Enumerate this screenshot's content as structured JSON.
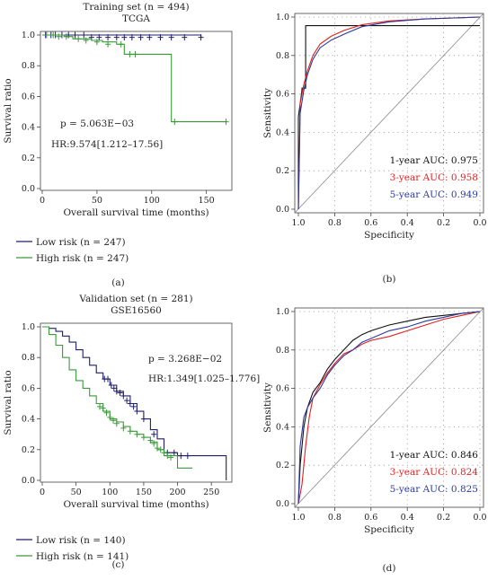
{
  "chart_data": [
    {
      "panel": "(a)",
      "type": "line",
      "title": "Training set (n = 494)",
      "subtitle": "TCGA",
      "xlabel": "Overall survival time (months)",
      "ylabel": "Survival ratio",
      "xlim": [
        0,
        170
      ],
      "ylim": [
        0,
        1.0
      ],
      "xticks": [
        "0",
        "50",
        "100",
        "150"
      ],
      "yticks": [
        "0.0",
        "0.2",
        "0.4",
        "0.6",
        "0.8",
        "1.0"
      ],
      "pvalue": "p = 5.063E−03",
      "hr": "HR:9.574[1.212–17.56]",
      "series": [
        {
          "name": "Low risk (n = 247)",
          "color": "#1f1f6b",
          "x": [
            0,
            145
          ],
          "y": [
            1.0,
            0.985
          ],
          "censor_x": [
            3,
            8,
            12,
            18,
            24,
            30,
            38,
            45,
            52,
            60,
            68,
            75,
            82,
            90,
            98,
            108,
            118,
            130,
            145
          ],
          "censor_y": [
            1.0,
            1.0,
            1.0,
            1.0,
            1.0,
            1.0,
            1.0,
            0.985,
            0.985,
            0.985,
            0.985,
            0.985,
            0.985,
            0.985,
            0.985,
            0.985,
            0.985,
            0.985,
            0.985
          ]
        },
        {
          "name": "High risk (n = 247)",
          "color": "#3a9a3a",
          "x": [
            0,
            20,
            28,
            45,
            55,
            68,
            75,
            90,
            115,
            118,
            168
          ],
          "y": [
            1.0,
            0.99,
            0.975,
            0.965,
            0.955,
            0.94,
            0.875,
            0.875,
            0.875,
            0.435,
            0.435
          ],
          "censor_x": [
            4,
            10,
            15,
            22,
            33,
            40,
            50,
            60,
            72,
            80,
            85,
            121,
            168
          ],
          "censor_y": [
            1.0,
            1.0,
            0.99,
            0.99,
            0.975,
            0.965,
            0.955,
            0.94,
            0.94,
            0.875,
            0.875,
            0.435,
            0.435
          ]
        }
      ]
    },
    {
      "panel": "(b)",
      "type": "line",
      "xlabel": "Specificity",
      "ylabel": "Sensitivity",
      "xlim": [
        1.0,
        0.0
      ],
      "ylim": [
        0,
        1.0
      ],
      "xticks": [
        "1.0",
        "0.8",
        "0.6",
        "0.4",
        "0.2",
        "0.0"
      ],
      "yticks": [
        "0.0",
        "0.2",
        "0.4",
        "0.6",
        "0.8",
        "1.0"
      ],
      "grid": true,
      "series": [
        {
          "name": "1-year AUC: 0.975",
          "color": "#111111",
          "x": [
            1.0,
            1.0,
            0.98,
            0.98,
            0.96,
            0.96,
            0.0
          ],
          "y": [
            0.0,
            0.48,
            0.62,
            0.63,
            0.63,
            0.955,
            0.955
          ]
        },
        {
          "name": "3-year AUC: 0.958",
          "color": "#e02020",
          "x": [
            1.0,
            0.99,
            0.97,
            0.95,
            0.92,
            0.88,
            0.82,
            0.75,
            0.65,
            0.5,
            0.3,
            0.0
          ],
          "y": [
            0.0,
            0.55,
            0.65,
            0.72,
            0.8,
            0.86,
            0.9,
            0.93,
            0.96,
            0.98,
            0.99,
            1.0
          ]
        },
        {
          "name": "5-year AUC: 0.949",
          "color": "#2b3b9a",
          "x": [
            1.0,
            0.99,
            0.97,
            0.95,
            0.92,
            0.88,
            0.82,
            0.75,
            0.65,
            0.5,
            0.3,
            0.0
          ],
          "y": [
            0.0,
            0.5,
            0.62,
            0.7,
            0.78,
            0.84,
            0.88,
            0.91,
            0.95,
            0.975,
            0.99,
            1.0
          ]
        }
      ]
    },
    {
      "panel": "(c)",
      "type": "line",
      "title": "Validation set (n = 281)",
      "subtitle": "GSE16560",
      "xlabel": "Overall survival time (months)",
      "ylabel": "Survival ratio",
      "xlim": [
        0,
        275
      ],
      "ylim": [
        0,
        1.0
      ],
      "xticks": [
        "0",
        "50",
        "100",
        "150",
        "200",
        "250"
      ],
      "yticks": [
        "0.0",
        "0.2",
        "0.4",
        "0.6",
        "0.8",
        "1.0"
      ],
      "pvalue": "p = 3.268E−02",
      "hr": "HR:1.349[1.025–1.776]",
      "series": [
        {
          "name": "Low risk (n = 140)",
          "color": "#1f1f6b",
          "x": [
            0,
            10,
            20,
            30,
            40,
            50,
            60,
            70,
            80,
            90,
            100,
            110,
            120,
            130,
            140,
            150,
            160,
            170,
            180,
            200,
            270,
            272
          ],
          "y": [
            1.0,
            0.99,
            0.97,
            0.94,
            0.9,
            0.85,
            0.8,
            0.75,
            0.7,
            0.66,
            0.62,
            0.58,
            0.55,
            0.5,
            0.45,
            0.4,
            0.33,
            0.27,
            0.18,
            0.16,
            0.16,
            0.0
          ],
          "censor_x": [
            92,
            97,
            102,
            106,
            110,
            115,
            120,
            125,
            130,
            135,
            140,
            150,
            165,
            185,
            195,
            205,
            215
          ],
          "censor_y": [
            0.66,
            0.66,
            0.62,
            0.6,
            0.58,
            0.57,
            0.55,
            0.52,
            0.5,
            0.48,
            0.45,
            0.4,
            0.3,
            0.18,
            0.18,
            0.16,
            0.16
          ]
        },
        {
          "name": "High risk (n = 141)",
          "color": "#3a9a3a",
          "x": [
            0,
            10,
            20,
            30,
            40,
            50,
            60,
            70,
            80,
            90,
            100,
            110,
            120,
            130,
            140,
            150,
            160,
            170,
            180,
            200,
            210,
            222
          ],
          "y": [
            1.0,
            0.95,
            0.88,
            0.8,
            0.72,
            0.65,
            0.6,
            0.55,
            0.5,
            0.45,
            0.4,
            0.38,
            0.35,
            0.32,
            0.3,
            0.28,
            0.25,
            0.2,
            0.16,
            0.08,
            0.08,
            0.08
          ],
          "censor_x": [
            85,
            90,
            95,
            100,
            105,
            110,
            120,
            130,
            140,
            150,
            160,
            165,
            170,
            175,
            180,
            185,
            190
          ],
          "censor_y": [
            0.48,
            0.47,
            0.44,
            0.41,
            0.39,
            0.37,
            0.34,
            0.32,
            0.3,
            0.28,
            0.26,
            0.24,
            0.21,
            0.2,
            0.18,
            0.16,
            0.15
          ]
        }
      ]
    },
    {
      "panel": "(d)",
      "type": "line",
      "xlabel": "Specificity",
      "ylabel": "Sensitivity",
      "xlim": [
        1.0,
        0.0
      ],
      "ylim": [
        0,
        1.0
      ],
      "xticks": [
        "1.0",
        "0.8",
        "0.6",
        "0.4",
        "0.2",
        "0.0"
      ],
      "yticks": [
        "0.0",
        "0.2",
        "0.4",
        "0.6",
        "0.8",
        "1.0"
      ],
      "grid": true,
      "series": [
        {
          "name": "1-year AUC: 0.846",
          "color": "#111111",
          "x": [
            1.0,
            0.99,
            0.97,
            0.95,
            0.92,
            0.88,
            0.84,
            0.8,
            0.75,
            0.7,
            0.65,
            0.6,
            0.5,
            0.4,
            0.3,
            0.2,
            0.1,
            0.0
          ],
          "y": [
            0.0,
            0.2,
            0.4,
            0.5,
            0.58,
            0.63,
            0.7,
            0.75,
            0.8,
            0.85,
            0.88,
            0.9,
            0.93,
            0.95,
            0.97,
            0.98,
            0.99,
            1.0
          ]
        },
        {
          "name": "3-year AUC: 0.824",
          "color": "#e02020",
          "x": [
            1.0,
            0.98,
            0.96,
            0.94,
            0.92,
            0.88,
            0.84,
            0.8,
            0.75,
            0.7,
            0.65,
            0.6,
            0.5,
            0.4,
            0.3,
            0.2,
            0.1,
            0.0
          ],
          "y": [
            0.0,
            0.1,
            0.3,
            0.45,
            0.55,
            0.62,
            0.68,
            0.73,
            0.78,
            0.8,
            0.83,
            0.85,
            0.87,
            0.9,
            0.93,
            0.96,
            0.98,
            1.0
          ]
        },
        {
          "name": "5-year AUC: 0.825",
          "color": "#2b3b9a",
          "x": [
            1.0,
            0.99,
            0.97,
            0.95,
            0.92,
            0.88,
            0.84,
            0.8,
            0.75,
            0.7,
            0.65,
            0.6,
            0.5,
            0.4,
            0.3,
            0.2,
            0.1,
            0.0
          ],
          "y": [
            0.0,
            0.3,
            0.45,
            0.5,
            0.55,
            0.6,
            0.67,
            0.72,
            0.77,
            0.8,
            0.84,
            0.86,
            0.9,
            0.92,
            0.95,
            0.97,
            0.99,
            1.0
          ]
        }
      ]
    }
  ]
}
